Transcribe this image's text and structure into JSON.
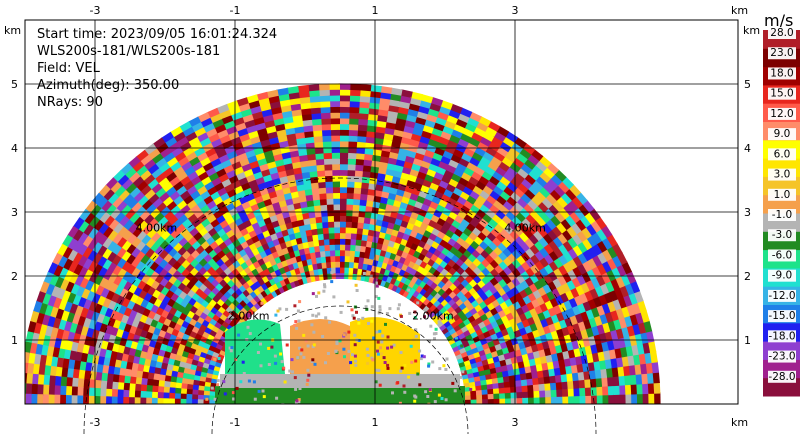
{
  "chart_data": {
    "type": "heatmap",
    "subtype": "radar-ppi-sector",
    "info_lines": [
      "Start time: 2023/09/05 16:01:24.324",
      "WLS200s-181/WLS200s-181",
      "Field: VEL",
      "Azimuth(deg): 350.00",
      "NRays: 90"
    ],
    "x_unit": "km",
    "y_unit": "km",
    "xlim": [
      -4,
      4.4
    ],
    "ylim": [
      0,
      5.45
    ],
    "x_ticks": [
      -3,
      -1,
      1,
      3
    ],
    "y_ticks": [
      1,
      2,
      3,
      4,
      5
    ],
    "grid": true,
    "range_rings": [
      {
        "label": "2.00km",
        "radius": 2
      },
      {
        "label": "4.00km",
        "radius": 4
      }
    ],
    "radar_origin": [
      0.5,
      0
    ],
    "max_range": 5,
    "colorbar": {
      "unit": "m/s",
      "tick_labels": [
        "-28.0",
        "-23.0",
        "-18.0",
        "-15.0",
        "-12.0",
        "-9.0",
        "-6.0",
        "-3.0",
        "-1.0",
        "1.0",
        "3.0",
        "6.0",
        "9.0",
        "12.0",
        "15.0",
        "18.0",
        "23.0",
        "28.0"
      ],
      "colors": [
        "#8a0f3c",
        "#a0208e",
        "#8e3fd0",
        "#2020f0",
        "#1f7fe8",
        "#36b3e6",
        "#20e0d0",
        "#1de38a",
        "#228b22",
        "#b4b4b4",
        "#f5a04c",
        "#f5c428",
        "#ffe600",
        "#ffff00",
        "#ff8c69",
        "#ff5a4a",
        "#e8261e",
        "#a00000",
        "#7d0000",
        "#b01e28"
      ]
    },
    "near_field_regions": [
      {
        "name": "green-cluster",
        "color": "#20e08a"
      },
      {
        "name": "orange-cluster",
        "color": "#f5a04c"
      },
      {
        "name": "yellow-cluster",
        "color": "#ffd500"
      },
      {
        "name": "grey-band",
        "color": "#b4b4b4"
      },
      {
        "name": "dark-green-band",
        "color": "#228b22"
      }
    ]
  }
}
